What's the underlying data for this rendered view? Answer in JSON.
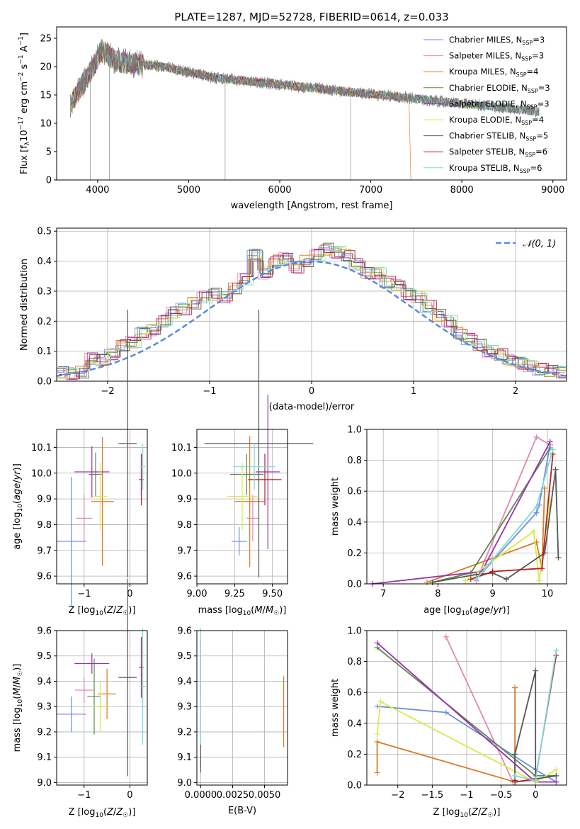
{
  "chart_data": [
    {
      "id": "spectrum",
      "type": "line",
      "title": "PLATE=1287, MJD=52728, FIBERID=0614, z=0.033",
      "xlabel": "wavelength [Angstrom, rest frame]",
      "ylabel": "Flux [f_λ 10^-17 erg cm^-2 s^-1 A^-1]",
      "xlim": [
        3550,
        9150
      ],
      "ylim": [
        0,
        27
      ],
      "xticks": [
        4000,
        5000,
        6000,
        7000,
        8000,
        9000
      ],
      "yticks": [
        0,
        5,
        10,
        15,
        20,
        25
      ],
      "legend_position": "top-right",
      "observed_envelope": {
        "x": [
          3700,
          3800,
          3950,
          4050,
          4200,
          4400,
          4700,
          5000,
          5300,
          5600,
          5900,
          6200,
          6500,
          6800,
          7100,
          7400,
          7700,
          8000,
          8300,
          8600,
          8850
        ],
        "y": [
          13,
          16,
          20,
          23,
          21,
          20.5,
          20,
          19,
          18,
          17.5,
          17,
          16.5,
          16,
          15.5,
          15,
          14.5,
          14,
          13.5,
          13,
          12.5,
          12
        ]
      },
      "series": [
        {
          "label": "Chabrier MILES, N",
          "sub": "SSP",
          "suffix": "=3",
          "color": "#6f8ee2"
        },
        {
          "label": "Salpeter MILES, N",
          "sub": "SSP",
          "suffix": "=3",
          "color": "#e287b4"
        },
        {
          "label": "Kroupa MILES, N",
          "sub": "SSP",
          "suffix": "=4",
          "color": "#d67b25"
        },
        {
          "label": "Chabrier ELODIE, N",
          "sub": "SSP",
          "suffix": "=3",
          "color": "#5a8a4a"
        },
        {
          "label": "Salpeter ELODIE, N",
          "sub": "SSP",
          "suffix": "=3",
          "color": "#9b30b0"
        },
        {
          "label": "Kroupa ELODIE, N",
          "sub": "SSP",
          "suffix": "=4",
          "color": "#d7ea4a"
        },
        {
          "label": "Chabrier STELIB, N",
          "sub": "SSP",
          "suffix": "=5",
          "color": "#555555"
        },
        {
          "label": "Salpeter STELIB, N",
          "sub": "SSP",
          "suffix": "=6",
          "color": "#b52020"
        },
        {
          "label": "Kroupa STELIB, N",
          "sub": "SSP",
          "suffix": "=6",
          "color": "#7fd8e0"
        }
      ]
    },
    {
      "id": "residuals",
      "type": "bar",
      "xlabel": "(data-model)/error",
      "ylabel": "Normed distribution",
      "xlim": [
        -2.5,
        2.5
      ],
      "ylim": [
        0,
        0.51
      ],
      "xticks": [
        -2,
        -1,
        0,
        1,
        2
      ],
      "yticks": [
        0.0,
        0.1,
        0.2,
        0.3,
        0.4,
        0.5
      ],
      "legend": "𝒩(0, 1)",
      "legend_position": "top-right",
      "bin_width": 0.1,
      "bins_start": -2.5,
      "histogram": [
        0.03,
        0.025,
        0.03,
        0.075,
        0.07,
        0.09,
        0.12,
        0.13,
        0.16,
        0.17,
        0.2,
        0.23,
        0.24,
        0.26,
        0.28,
        0.29,
        0.28,
        0.31,
        0.34,
        0.42,
        0.36,
        0.4,
        0.41,
        0.38,
        0.4,
        0.42,
        0.44,
        0.43,
        0.42,
        0.39,
        0.36,
        0.36,
        0.33,
        0.32,
        0.29,
        0.28,
        0.25,
        0.22,
        0.2,
        0.16,
        0.14,
        0.12,
        0.1,
        0.09,
        0.07,
        0.06,
        0.05,
        0.04,
        0.035,
        0.03
      ]
    },
    {
      "id": "age_vs_Z",
      "type": "scatter",
      "xlabel": "Z [log10(Z/Z☉)]",
      "ylabel": "age  [log10(age/yr)]",
      "xlim": [
        -1.6,
        0.38
      ],
      "ylim": [
        9.57,
        10.17
      ],
      "xticks": [
        -1,
        0
      ],
      "xtick_labels": [
        "−1",
        "0"
      ],
      "yticks": [
        9.6,
        9.7,
        9.8,
        9.9,
        10.0,
        10.1
      ],
      "points": [
        {
          "x": -1.28,
          "y": 9.735,
          "xerr": 0.33,
          "yerr": 0.25,
          "color": "#6f8ee2"
        },
        {
          "x": -1.0,
          "y": 9.825,
          "xerr": 0.18,
          "yerr": 0.09,
          "color": "#e287b4"
        },
        {
          "x": -0.6,
          "y": 9.89,
          "xerr": 0.25,
          "yerr": 0.25,
          "color": "#d67b25"
        },
        {
          "x": -0.75,
          "y": 9.995,
          "xerr": 0.15,
          "yerr": 0.085,
          "color": "#5a8a4a"
        },
        {
          "x": -0.83,
          "y": 10.005,
          "xerr": 0.38,
          "yerr": 0.1,
          "color": "#9b30b0"
        },
        {
          "x": -0.65,
          "y": 9.91,
          "xerr": 0.15,
          "yerr": 0.13,
          "color": "#d7ea4a"
        },
        {
          "x": -0.05,
          "y": 10.115,
          "xerr": 0.2,
          "yerr": 0.52,
          "color": "#555555"
        },
        {
          "x": 0.25,
          "y": 9.975,
          "xerr": 0.05,
          "yerr": 0.1,
          "color": "#b52020"
        },
        {
          "x": 0.28,
          "y": 10.025,
          "xerr": 0.06,
          "yerr": 0.09,
          "color": "#7fd8e0"
        }
      ]
    },
    {
      "id": "age_vs_mass",
      "type": "scatter",
      "xlabel": "mass [log10(M/M☉)]",
      "ylabel": "",
      "xlim": [
        9.0,
        9.6
      ],
      "ylim": [
        9.57,
        10.17
      ],
      "xticks": [
        9.0,
        9.25,
        9.5
      ],
      "xtick_labels": [
        "9.00",
        "9.25",
        "9.50"
      ],
      "yticks": [
        9.6,
        9.7,
        9.8,
        9.9,
        10.0,
        10.1
      ],
      "points": [
        {
          "x": 9.28,
          "y": 9.735,
          "xerr": 0.05,
          "yerr": 0.055,
          "color": "#6f8ee2"
        },
        {
          "x": 9.37,
          "y": 9.825,
          "xerr": 0.04,
          "yerr": 0.09,
          "color": "#e287b4"
        },
        {
          "x": 9.35,
          "y": 9.89,
          "xerr": 0.1,
          "yerr": 0.255,
          "color": "#d67b25"
        },
        {
          "x": 9.33,
          "y": 9.995,
          "xerr": 0.11,
          "yerr": 0.08,
          "color": "#5a8a4a"
        },
        {
          "x": 9.47,
          "y": 10.005,
          "xerr": 0.08,
          "yerr": 0.3,
          "color": "#9b30b0"
        },
        {
          "x": 9.3,
          "y": 9.91,
          "xerr": 0.1,
          "yerr": 0.13,
          "color": "#d7ea4a"
        },
        {
          "x": 9.41,
          "y": 10.115,
          "xerr": 0.36,
          "yerr": 0.52,
          "color": "#555555"
        },
        {
          "x": 9.45,
          "y": 9.975,
          "xerr": 0.11,
          "yerr": 0.1,
          "color": "#b52020"
        },
        {
          "x": 9.38,
          "y": 10.025,
          "xerr": 0.14,
          "yerr": 0.09,
          "color": "#7fd8e0"
        }
      ]
    },
    {
      "id": "massweight_vs_age",
      "type": "line",
      "xlabel": "age  [log10(age/yr)]",
      "ylabel": "mass weight",
      "xlim": [
        6.7,
        10.35
      ],
      "ylim": [
        0,
        1.0
      ],
      "xticks": [
        7,
        8,
        9,
        10
      ],
      "yticks": [
        0.0,
        0.2,
        0.4,
        0.6,
        0.8,
        1.0
      ],
      "series": [
        {
          "color": "#6f8ee2",
          "x": [
            8.7,
            9.8,
            9.85,
            10.05
          ],
          "y": [
            0.03,
            0.46,
            0.51,
            0.9
          ]
        },
        {
          "color": "#e287b4",
          "x": [
            8.7,
            9.8,
            10.05
          ],
          "y": [
            0.02,
            0.95,
            0.9
          ]
        },
        {
          "color": "#d67b25",
          "x": [
            7.8,
            9.8,
            9.9,
            9.95
          ],
          "y": [
            0.01,
            0.27,
            0.1,
            0.62
          ]
        },
        {
          "color": "#5a8a4a",
          "x": [
            7.9,
            8.6,
            10.05
          ],
          "y": [
            0.01,
            0.07,
            0.88
          ]
        },
        {
          "color": "#9b30b0",
          "x": [
            6.8,
            8.8,
            10.05
          ],
          "y": [
            0.0,
            0.08,
            0.92
          ]
        },
        {
          "color": "#d7ea4a",
          "x": [
            8.5,
            9.75,
            9.85,
            10.05
          ],
          "y": [
            0.02,
            0.34,
            0.02,
            0.54
          ]
        },
        {
          "color": "#555555",
          "x": [
            7.9,
            8.7,
            9.0,
            9.25,
            9.95,
            10.15,
            10.2
          ],
          "y": [
            0.01,
            0.06,
            0.07,
            0.03,
            0.2,
            0.74,
            0.17
          ]
        },
        {
          "color": "#b52020",
          "x": [
            8.6,
            9.0,
            9.9,
            10.1
          ],
          "y": [
            0.03,
            0.08,
            0.1,
            0.84
          ]
        },
        {
          "color": "#7fd8e0",
          "x": [
            8.7,
            9.8,
            10.1
          ],
          "y": [
            0.03,
            0.5,
            0.87
          ]
        }
      ]
    },
    {
      "id": "mass_vs_Z",
      "type": "scatter",
      "xlabel": "Z [log10(Z/Z☉)]",
      "ylabel": "mass [log10(M/M☉)]",
      "xlim": [
        -1.6,
        0.38
      ],
      "ylim": [
        8.99,
        9.6
      ],
      "xticks": [
        -1,
        0
      ],
      "xtick_labels": [
        "−1",
        "0"
      ],
      "yticks": [
        9.0,
        9.1,
        9.2,
        9.3,
        9.4,
        9.5,
        9.6
      ],
      "points": [
        {
          "x": -1.28,
          "y": 9.27,
          "xerr": 0.33,
          "yerr": 0.07,
          "color": "#6f8ee2"
        },
        {
          "x": -1.0,
          "y": 9.365,
          "xerr": 0.2,
          "yerr": 0.05,
          "color": "#e287b4"
        },
        {
          "x": -0.5,
          "y": 9.35,
          "xerr": 0.2,
          "yerr": 0.1,
          "color": "#d67b25"
        },
        {
          "x": -0.78,
          "y": 9.34,
          "xerr": 0.15,
          "yerr": 0.15,
          "color": "#5a8a4a"
        },
        {
          "x": -0.83,
          "y": 9.47,
          "xerr": 0.38,
          "yerr": 0.04,
          "color": "#9b30b0"
        },
        {
          "x": -0.65,
          "y": 9.3,
          "xerr": 0.15,
          "yerr": 0.1,
          "color": "#d7ea4a"
        },
        {
          "x": -0.05,
          "y": 9.415,
          "xerr": 0.2,
          "yerr": 0.39,
          "color": "#555555"
        },
        {
          "x": 0.25,
          "y": 9.455,
          "xerr": 0.05,
          "yerr": 0.12,
          "color": "#b52020"
        },
        {
          "x": 0.28,
          "y": 9.38,
          "xerr": 0.06,
          "yerr": 0.23,
          "color": "#7fd8e0"
        }
      ]
    },
    {
      "id": "mass_vs_EBV",
      "type": "scatter",
      "xlabel": "E(B-V)",
      "ylabel": "",
      "xlim": [
        -0.0003,
        0.0068
      ],
      "ylim": [
        8.99,
        9.6
      ],
      "xticks": [
        0.0,
        0.0025,
        0.005
      ],
      "xtick_labels": [
        "0.0000",
        "0.0025",
        "0.0050"
      ],
      "yticks": [
        9.0,
        9.1,
        9.2,
        9.3,
        9.4,
        9.5,
        9.6
      ],
      "points": [
        {
          "x": 0.0,
          "y": 9.3,
          "xerr": 0,
          "yerr": 0.26,
          "color": "#555555"
        },
        {
          "x": 0.0,
          "y": 9.45,
          "xerr": 0,
          "yerr": 0.12,
          "color": "#b52020"
        },
        {
          "x": 0.0,
          "y": 9.38,
          "xerr": 0,
          "yerr": 0.23,
          "color": "#7fd8e0"
        },
        {
          "x": 0.0065,
          "y": 9.28,
          "xerr": 0,
          "yerr": 0.14,
          "color": "#d67b25"
        }
      ]
    },
    {
      "id": "massweight_vs_Z",
      "type": "line",
      "xlabel": "Z [log10(Z/Z☉)]",
      "ylabel": "mass weight",
      "xlim": [
        -2.45,
        0.45
      ],
      "ylim": [
        0,
        1.0
      ],
      "xticks": [
        -2.0,
        -1.5,
        -1.0,
        -0.5,
        0.0
      ],
      "yticks": [
        0.0,
        0.2,
        0.4,
        0.6,
        0.8,
        1.0
      ],
      "series": [
        {
          "color": "#6f8ee2",
          "x": [
            -2.3,
            -1.3,
            0.0,
            0.3
          ],
          "y": [
            0.51,
            0.47,
            0.1,
            0.02
          ]
        },
        {
          "color": "#e287b4",
          "x": [
            -1.3,
            -0.33,
            0.0
          ],
          "y": [
            0.96,
            0.02,
            0.03
          ]
        },
        {
          "color": "#d67b25",
          "x": [
            -2.3,
            -2.3,
            -0.3,
            -0.3
          ],
          "y": [
            0.08,
            0.28,
            0.02,
            0.63
          ]
        },
        {
          "color": "#5a8a4a",
          "x": [
            -2.3,
            0.0,
            0.3
          ],
          "y": [
            0.89,
            0.06,
            0.06
          ]
        },
        {
          "color": "#9b30b0",
          "x": [
            -2.3,
            0.0,
            0.3
          ],
          "y": [
            0.92,
            0.02,
            0.02
          ]
        },
        {
          "color": "#d7ea4a",
          "x": [
            -2.3,
            -2.25,
            0.0,
            0.3
          ],
          "y": [
            0.33,
            0.54,
            0.02,
            0.1
          ]
        },
        {
          "color": "#555555",
          "x": [
            -0.3,
            -0.3,
            0.0,
            0.0,
            0.3
          ],
          "y": [
            0.03,
            0.2,
            0.74,
            0.04,
            0.06
          ]
        },
        {
          "color": "#b52020",
          "x": [
            -0.3,
            0.0,
            0.3
          ],
          "y": [
            0.02,
            0.04,
            0.84
          ]
        },
        {
          "color": "#7fd8e0",
          "x": [
            -0.3,
            0.0,
            0.3
          ],
          "y": [
            0.06,
            0.03,
            0.87
          ]
        }
      ]
    }
  ]
}
